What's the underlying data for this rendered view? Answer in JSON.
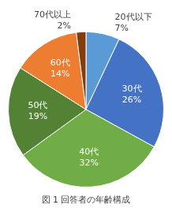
{
  "chart_data": {
    "type": "pie",
    "title": "図 1 回答者の年齢構成",
    "categories": [
      "20代以下",
      "30代",
      "40代",
      "50代",
      "60代",
      "70代以上"
    ],
    "values": [
      7,
      26,
      32,
      19,
      14,
      2
    ],
    "value_labels": [
      "7%",
      "26%",
      "32%",
      "19%",
      "14%",
      "2%"
    ],
    "colors": [
      "#5B9BD5",
      "#4472C4",
      "#70AD47",
      "#548235",
      "#ED7D31",
      "#843C0C"
    ],
    "data_labels": true
  }
}
